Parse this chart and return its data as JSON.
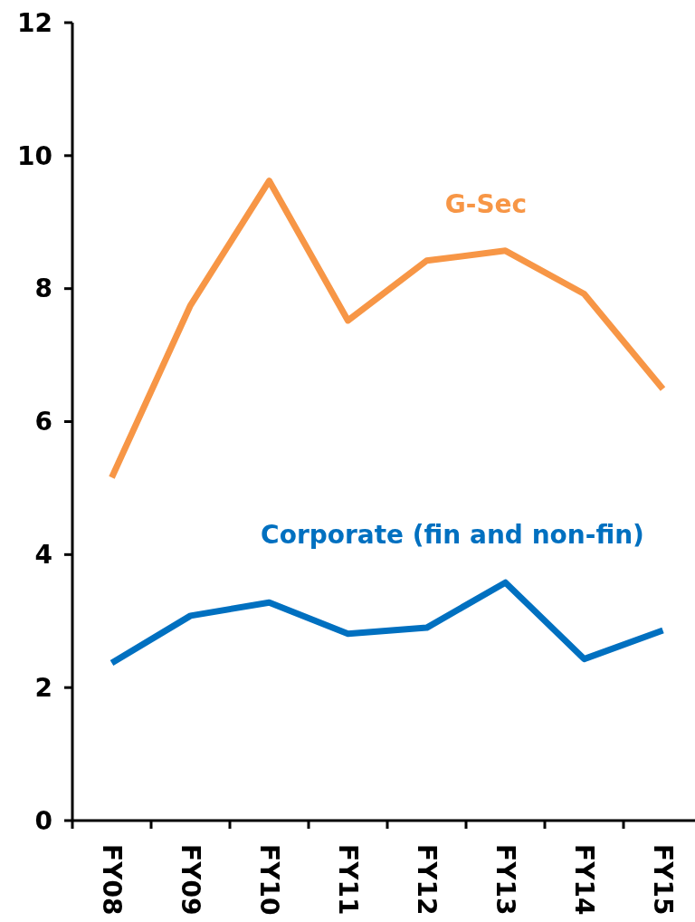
{
  "chart_data": {
    "type": "line",
    "categories": [
      "FY08",
      "FY09",
      "FY10",
      "FY11",
      "FY12",
      "FY13",
      "FY14",
      "FY15"
    ],
    "series": [
      {
        "name": "G-Sec",
        "color": "#f79646",
        "values": [
          5.16,
          7.75,
          9.62,
          7.52,
          8.42,
          8.57,
          7.92,
          6.49
        ]
      },
      {
        "name": "Corporate (fin and non-fin)",
        "color": "#0070c0",
        "values": [
          2.37,
          3.08,
          3.28,
          2.81,
          2.9,
          3.58,
          2.43,
          2.86
        ]
      }
    ],
    "ylim": [
      0,
      12
    ],
    "yticks": [
      0,
      2,
      4,
      6,
      8,
      10,
      12
    ],
    "grid": false,
    "marker": "none",
    "line_style": "solid"
  }
}
